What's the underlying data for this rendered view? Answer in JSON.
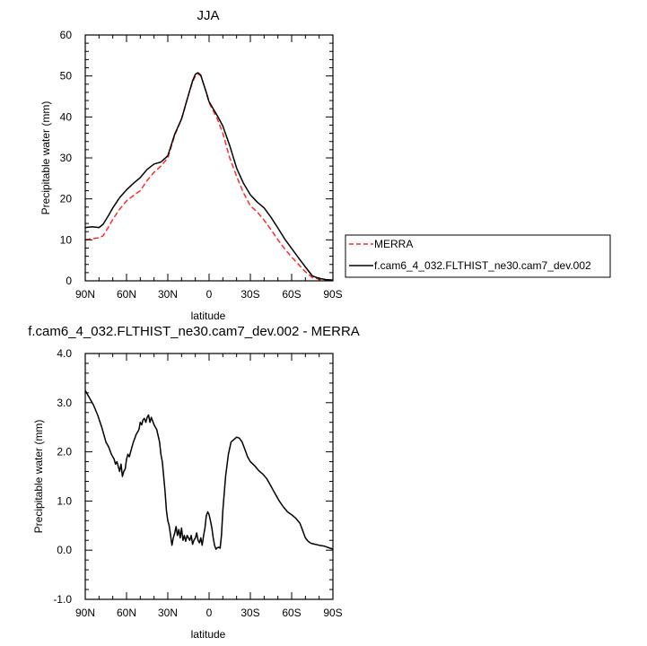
{
  "colors": {
    "merra": "#ff2a2a",
    "model": "#000000",
    "axis": "#000000"
  },
  "chart_data": [
    {
      "type": "line",
      "title": "JJA",
      "xlabel": "latitude",
      "ylabel": "Precipitable water (mm)",
      "x_ticks": [
        "90N",
        "60N",
        "30N",
        "0",
        "30S",
        "60S",
        "90S"
      ],
      "xlim": [
        90,
        -90
      ],
      "ylim": [
        0,
        60
      ],
      "y_ticks": [
        "0",
        "10",
        "20",
        "30",
        "40",
        "50",
        "60"
      ],
      "grid": false,
      "legend_placement": "right",
      "series": [
        {
          "name": "MERRA",
          "style": "dashed",
          "color": "#ff2a2a",
          "x": [
            90,
            85,
            80,
            77,
            73,
            70,
            65,
            60,
            55,
            50,
            45,
            40,
            35,
            30,
            25,
            20,
            17,
            14,
            12,
            10,
            8,
            6,
            4,
            2,
            0,
            -3,
            -6,
            -10,
            -15,
            -20,
            -25,
            -30,
            -35,
            -40,
            -45,
            -50,
            -55,
            -60,
            -65,
            -70,
            -75,
            -80,
            -85,
            -90
          ],
          "y": [
            10,
            10.3,
            10.5,
            11.0,
            13.2,
            15.0,
            17.5,
            19.5,
            20.8,
            22.0,
            24.5,
            26.5,
            28.0,
            30.0,
            35.5,
            39.5,
            43.0,
            46.5,
            48.5,
            50.0,
            50.5,
            50.0,
            48.0,
            46.0,
            43.5,
            41.5,
            39.5,
            36.0,
            30.0,
            25.5,
            21.5,
            18.3,
            16.8,
            14.8,
            12.5,
            10.0,
            7.8,
            5.8,
            4.0,
            2.2,
            0.8,
            0.4,
            0.2,
            0.1
          ]
        },
        {
          "name": "f.cam6_4_032.FLTHIST_ne30.cam7_dev.002",
          "style": "solid",
          "color": "#000000",
          "x": [
            90,
            85,
            80,
            77,
            73,
            70,
            65,
            60,
            55,
            50,
            45,
            40,
            35,
            30,
            25,
            20,
            17,
            14,
            12,
            10,
            8,
            6,
            4,
            2,
            0,
            -3,
            -6,
            -10,
            -15,
            -20,
            -25,
            -30,
            -35,
            -40,
            -45,
            -50,
            -55,
            -60,
            -65,
            -70,
            -75,
            -80,
            -85,
            -90
          ],
          "y": [
            13.0,
            13.2,
            13.0,
            13.8,
            16.0,
            17.8,
            20.3,
            22.2,
            23.8,
            25.2,
            27.2,
            28.5,
            29.0,
            30.5,
            35.8,
            39.5,
            43.0,
            46.5,
            48.8,
            50.4,
            50.8,
            50.2,
            48.0,
            46.0,
            43.7,
            42.0,
            40.3,
            37.8,
            33.0,
            27.5,
            23.8,
            21.0,
            19.2,
            17.8,
            15.5,
            12.9,
            10.2,
            7.9,
            5.6,
            3.4,
            1.2,
            0.6,
            0.3,
            0.2
          ]
        }
      ]
    },
    {
      "type": "line",
      "title": "f.cam6_4_032.FLTHIST_ne30.cam7_dev.002 - MERRA",
      "xlabel": "latitude",
      "ylabel": "Precipitable water (mm)",
      "x_ticks": [
        "90N",
        "60N",
        "30N",
        "0",
        "30S",
        "60S",
        "90S"
      ],
      "xlim": [
        90,
        -90
      ],
      "ylim": [
        -1,
        4
      ],
      "y_ticks": [
        "-1.0",
        "0.0",
        "1.0",
        "2.0",
        "3.0",
        "4.0"
      ],
      "grid": false,
      "series": [
        {
          "style": "solid",
          "color": "#000000",
          "x": [
            90,
            87,
            84,
            81,
            78,
            75,
            73,
            71,
            69,
            68,
            67,
            66,
            65,
            64,
            63,
            62,
            61,
            60,
            59,
            58,
            57,
            56,
            55,
            53,
            51,
            50,
            49,
            48,
            47,
            46,
            45,
            44,
            43,
            42,
            40,
            38,
            36,
            35,
            34,
            33,
            32,
            31,
            30,
            29,
            28,
            27,
            26,
            25,
            24,
            23,
            22,
            21,
            20,
            19,
            18,
            17,
            16,
            15,
            14,
            13,
            12,
            11,
            10,
            9,
            8,
            7,
            6,
            5,
            4,
            3,
            2,
            1,
            0,
            -1,
            -2,
            -3,
            -4,
            -5,
            -6,
            -7,
            -8,
            -9,
            -10,
            -12,
            -14,
            -16,
            -18,
            -20,
            -22,
            -24,
            -26,
            -28,
            -30,
            -33,
            -36,
            -39,
            -42,
            -45,
            -48,
            -51,
            -54,
            -57,
            -60,
            -63,
            -66,
            -68,
            -70,
            -72,
            -74,
            -77,
            -80,
            -84,
            -87,
            -90
          ],
          "y": [
            3.25,
            3.1,
            2.95,
            2.75,
            2.5,
            2.2,
            2.1,
            1.95,
            1.85,
            1.75,
            1.8,
            1.7,
            1.6,
            1.75,
            1.5,
            1.6,
            1.65,
            1.85,
            1.95,
            1.9,
            2.0,
            2.1,
            2.2,
            2.35,
            2.45,
            2.6,
            2.55,
            2.65,
            2.68,
            2.6,
            2.7,
            2.75,
            2.6,
            2.7,
            2.55,
            2.45,
            2.2,
            1.95,
            1.8,
            1.5,
            1.2,
            0.8,
            0.6,
            0.5,
            0.3,
            0.1,
            0.25,
            0.35,
            0.48,
            0.3,
            0.42,
            0.25,
            0.45,
            0.2,
            0.3,
            0.18,
            0.3,
            0.25,
            0.2,
            0.3,
            0.12,
            0.2,
            0.25,
            0.35,
            0.2,
            0.15,
            0.25,
            0.1,
            0.3,
            0.45,
            0.7,
            0.78,
            0.72,
            0.6,
            0.45,
            0.25,
            0.1,
            0.02,
            0.05,
            0.06,
            0.04,
            0.3,
            0.8,
            1.5,
            1.95,
            2.2,
            2.25,
            2.3,
            2.28,
            2.2,
            2.05,
            1.9,
            1.8,
            1.72,
            1.62,
            1.55,
            1.45,
            1.3,
            1.15,
            1.0,
            0.88,
            0.78,
            0.72,
            0.65,
            0.55,
            0.4,
            0.25,
            0.18,
            0.14,
            0.12,
            0.1,
            0.08,
            0.05,
            0.02
          ]
        }
      ]
    }
  ]
}
